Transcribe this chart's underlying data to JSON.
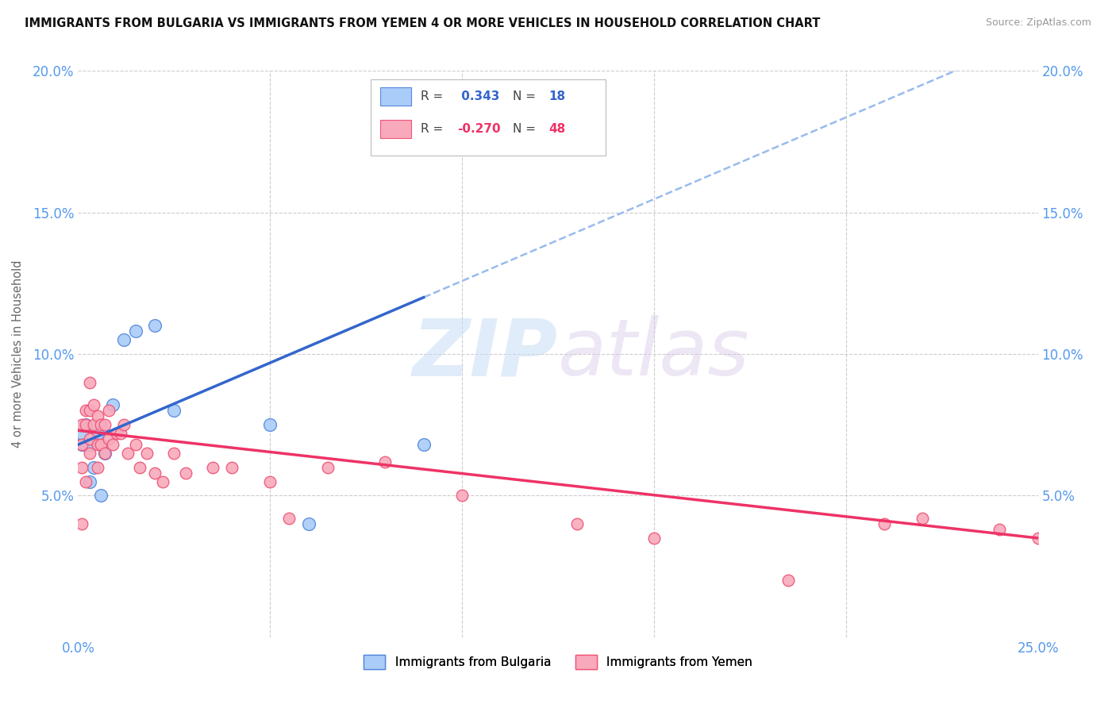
{
  "title": "IMMIGRANTS FROM BULGARIA VS IMMIGRANTS FROM YEMEN 4 OR MORE VEHICLES IN HOUSEHOLD CORRELATION CHART",
  "source": "Source: ZipAtlas.com",
  "ylabel": "4 or more Vehicles in Household",
  "xlim": [
    0,
    0.25
  ],
  "ylim": [
    0,
    0.2
  ],
  "xtick_vals": [
    0.0,
    0.05,
    0.1,
    0.15,
    0.2,
    0.25
  ],
  "ytick_vals": [
    0.0,
    0.05,
    0.1,
    0.15,
    0.2
  ],
  "xtick_labels": [
    "0.0%",
    "",
    "",
    "",
    "",
    "25.0%"
  ],
  "ytick_labels": [
    "",
    "5.0%",
    "10.0%",
    "15.0%",
    "20.0%"
  ],
  "bulgaria_color": "#aaccf8",
  "bulgaria_edge": "#5588dd",
  "yemen_color": "#f8aabc",
  "yemen_edge": "#ee5577",
  "r_bulgaria": 0.343,
  "n_bulgaria": 18,
  "r_yemen": -0.27,
  "n_yemen": 48,
  "line_bulgaria_color": "#3366cc",
  "line_yemen_color": "#ee3366",
  "dashed_line_color": "#99bbee",
  "watermark_zip": "ZIP",
  "watermark_atlas": "atlas",
  "legend_bulgaria": "Immigrants from Bulgaria",
  "legend_yemen": "Immigrants from Yemen",
  "bulgaria_x": [
    0.001,
    0.001,
    0.002,
    0.002,
    0.003,
    0.003,
    0.004,
    0.005,
    0.006,
    0.007,
    0.009,
    0.012,
    0.015,
    0.02,
    0.025,
    0.05,
    0.06,
    0.09
  ],
  "bulgaria_y": [
    0.068,
    0.072,
    0.075,
    0.068,
    0.068,
    0.055,
    0.06,
    0.072,
    0.05,
    0.065,
    0.082,
    0.105,
    0.108,
    0.11,
    0.08,
    0.075,
    0.04,
    0.068
  ],
  "yemen_x": [
    0.001,
    0.001,
    0.001,
    0.001,
    0.002,
    0.002,
    0.002,
    0.003,
    0.003,
    0.003,
    0.003,
    0.004,
    0.004,
    0.005,
    0.005,
    0.005,
    0.006,
    0.006,
    0.007,
    0.007,
    0.008,
    0.008,
    0.009,
    0.01,
    0.011,
    0.012,
    0.013,
    0.015,
    0.016,
    0.018,
    0.02,
    0.022,
    0.025,
    0.028,
    0.035,
    0.04,
    0.05,
    0.055,
    0.065,
    0.08,
    0.1,
    0.13,
    0.15,
    0.185,
    0.21,
    0.22,
    0.24,
    0.25
  ],
  "yemen_y": [
    0.075,
    0.068,
    0.06,
    0.04,
    0.08,
    0.075,
    0.055,
    0.09,
    0.08,
    0.07,
    0.065,
    0.082,
    0.075,
    0.078,
    0.068,
    0.06,
    0.075,
    0.068,
    0.075,
    0.065,
    0.08,
    0.07,
    0.068,
    0.072,
    0.072,
    0.075,
    0.065,
    0.068,
    0.06,
    0.065,
    0.058,
    0.055,
    0.065,
    0.058,
    0.06,
    0.06,
    0.055,
    0.042,
    0.06,
    0.062,
    0.05,
    0.04,
    0.035,
    0.02,
    0.04,
    0.042,
    0.038,
    0.035
  ],
  "fig_width": 14.06,
  "fig_height": 8.92,
  "background_color": "#ffffff",
  "grid_color": "#cccccc",
  "tick_color": "#5599ee"
}
